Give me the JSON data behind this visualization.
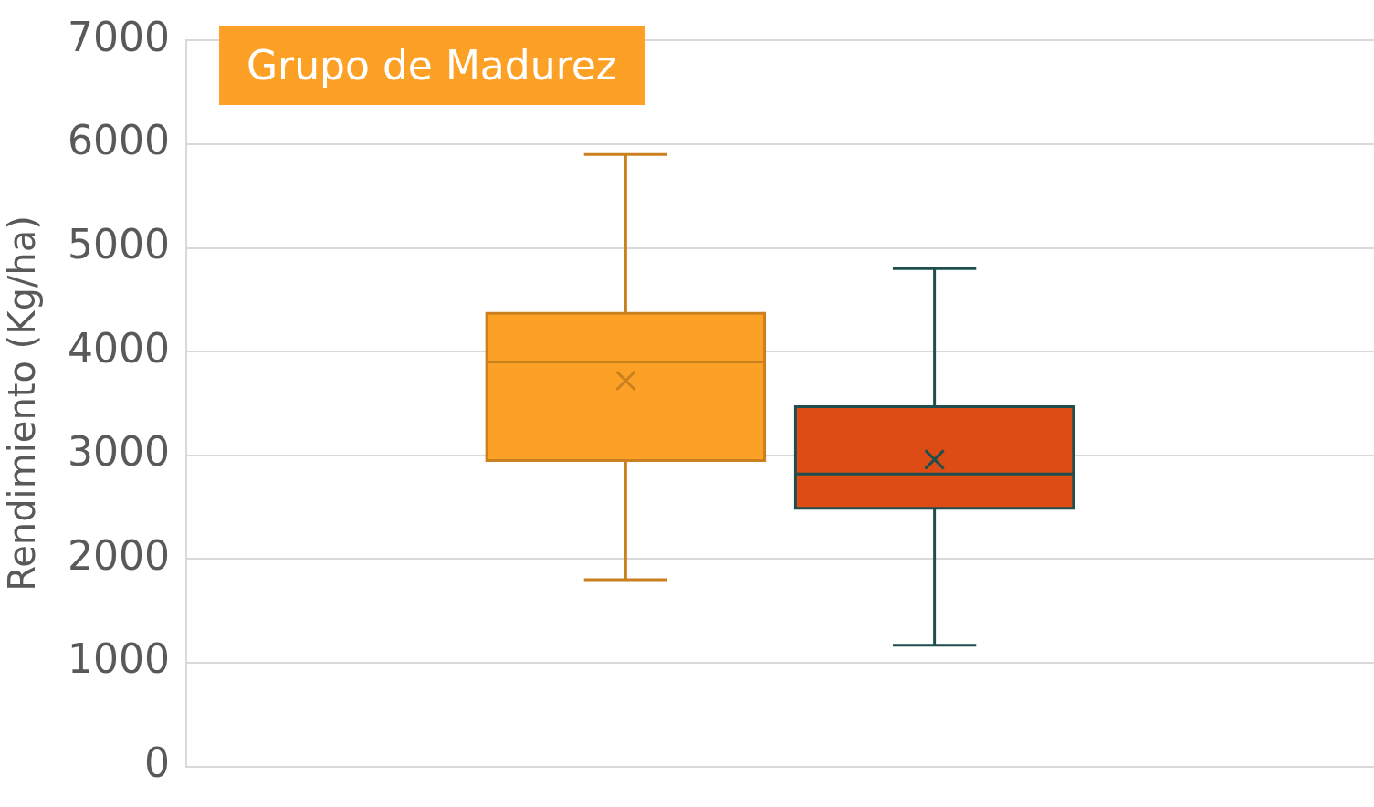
{
  "chart_data": {
    "type": "box",
    "title": "Grupo de Madurez",
    "ylabel": "Rendimiento (Kg/ha)",
    "categories": [
      null
    ],
    "series": [
      {
        "color": "#fca026",
        "boxes": [
          {
            "low": 1800,
            "q1": 2950,
            "median": 3900,
            "q3": 4370,
            "high": 5900,
            "mean": 3720
          }
        ]
      },
      {
        "color": "#dc4c14",
        "boxes": [
          {
            "low": 1170,
            "q1": 2490,
            "median": 2820,
            "q3": 3470,
            "high": 4800,
            "mean": 2960
          }
        ]
      }
    ],
    "ylim": [
      0,
      7000
    ],
    "yticks": [
      0,
      1000,
      2000,
      3000,
      4000,
      5000,
      6000,
      7000
    ],
    "grid": "y"
  }
}
